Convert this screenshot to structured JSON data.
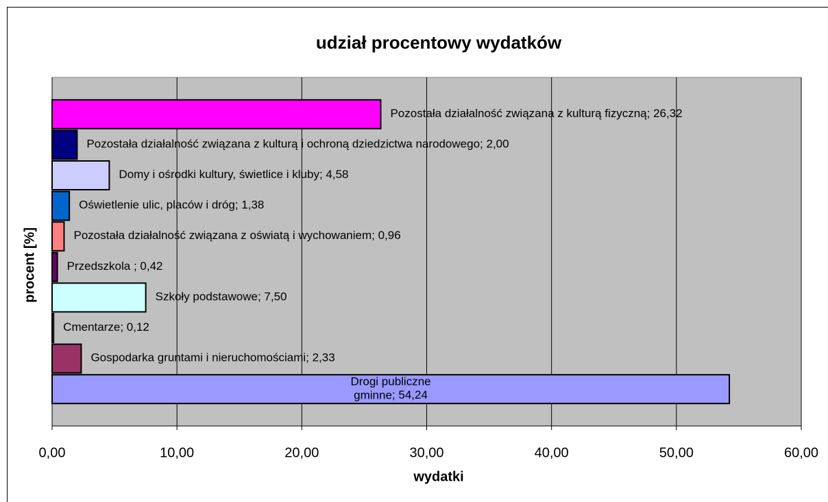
{
  "chart_data": {
    "type": "bar",
    "orientation": "horizontal",
    "title": "udział procentowy wydatków",
    "xlabel": "wydatki",
    "ylabel": "procent [%]",
    "categories": [
      "Drogi publiczne gminne",
      "Gospodarka gruntami i nieruchomościami",
      "Cmentarze",
      "Szkoły podstawowe",
      "Przedszkola ",
      "Pozostała działalność związana z oświatą i wychowaniem",
      "Oświetlenie ulic, placów i dróg",
      "Domy i ośrodki kultury, świetlice i kluby",
      "Pozostała działalność związana z kulturą i ochroną dziedzictwa narodowego",
      "Pozostała działalność związana z kulturą fizyczną"
    ],
    "values": [
      54.24,
      2.33,
      0.12,
      7.5,
      0.42,
      0.96,
      1.38,
      4.58,
      2.0,
      26.32
    ],
    "value_labels": [
      "54,24",
      "2,33",
      "0,12",
      "7,50",
      "0,42",
      "0,96",
      "1,38",
      "4,58",
      "2,00",
      "26,32"
    ],
    "data_label_separator": "; ",
    "colors": [
      "#9999ff",
      "#993366",
      "#ffffff",
      "#ccffff",
      "#660066",
      "#ff8080",
      "#0066cc",
      "#ccccff",
      "#000080",
      "#ff00ff"
    ],
    "xlim": [
      0,
      60
    ],
    "xticks": [
      {
        "value": 0,
        "label": "0,00"
      },
      {
        "value": 10,
        "label": "10,00"
      },
      {
        "value": 20,
        "label": "20,00"
      },
      {
        "value": 30,
        "label": "30,00"
      },
      {
        "value": 40,
        "label": "40,00"
      },
      {
        "value": 50,
        "label": "50,00"
      },
      {
        "value": 60,
        "label": "60,00"
      }
    ],
    "grid": true,
    "plot_background": "#c0c0c0"
  }
}
